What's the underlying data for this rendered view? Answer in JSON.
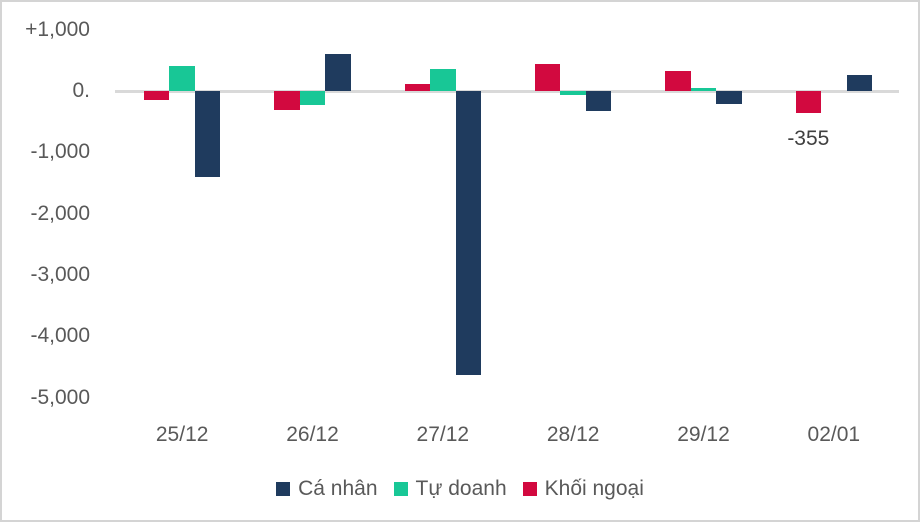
{
  "colors": {
    "background": "#FFFFFF",
    "frame_border": "#D4D4D4",
    "axis_line": "#D9D9D9",
    "tick_text": "#595959",
    "data_label_text": "#404040"
  },
  "chart_data": {
    "type": "bar",
    "title": "",
    "xlabel": "",
    "ylabel": "",
    "grid": false,
    "categories": [
      "25/12",
      "26/12",
      "27/12",
      "28/12",
      "29/12",
      "02/01"
    ],
    "series": [
      {
        "name": "Cá nhân",
        "color": "#1F3B5E",
        "values": [
          -1400,
          600,
          -4630,
          -320,
          -210,
          260
        ]
      },
      {
        "name": "Tự doanh",
        "color": "#18C796",
        "values": [
          410,
          -230,
          360,
          -65,
          55,
          0
        ]
      },
      {
        "name": "Khối ngoại",
        "color": "#D2093F",
        "values": [
          -140,
          -310,
          120,
          440,
          330,
          -355
        ]
      }
    ],
    "bar_display_order": [
      "Khối ngoại",
      "Tự doanh",
      "Cá nhân"
    ],
    "y_axis": {
      "ylim": [
        -5000,
        1000
      ],
      "ticks": [
        {
          "label": "+1,000",
          "value": 1000
        },
        {
          "label": "0.",
          "value": 0
        },
        {
          "label": "-1,000",
          "value": -1000
        },
        {
          "label": "-2,000",
          "value": -2000
        },
        {
          "label": "-3,000",
          "value": -3000
        },
        {
          "label": "-4,000",
          "value": -4000
        },
        {
          "label": "-5,000",
          "value": -5000
        }
      ]
    },
    "data_labels": [
      {
        "series": "Khối ngoại",
        "category": "02/01",
        "text": "-355"
      }
    ],
    "legend": {
      "position": "bottom",
      "items": [
        "Cá nhân",
        "Tự doanh",
        "Khối ngoại"
      ]
    }
  }
}
